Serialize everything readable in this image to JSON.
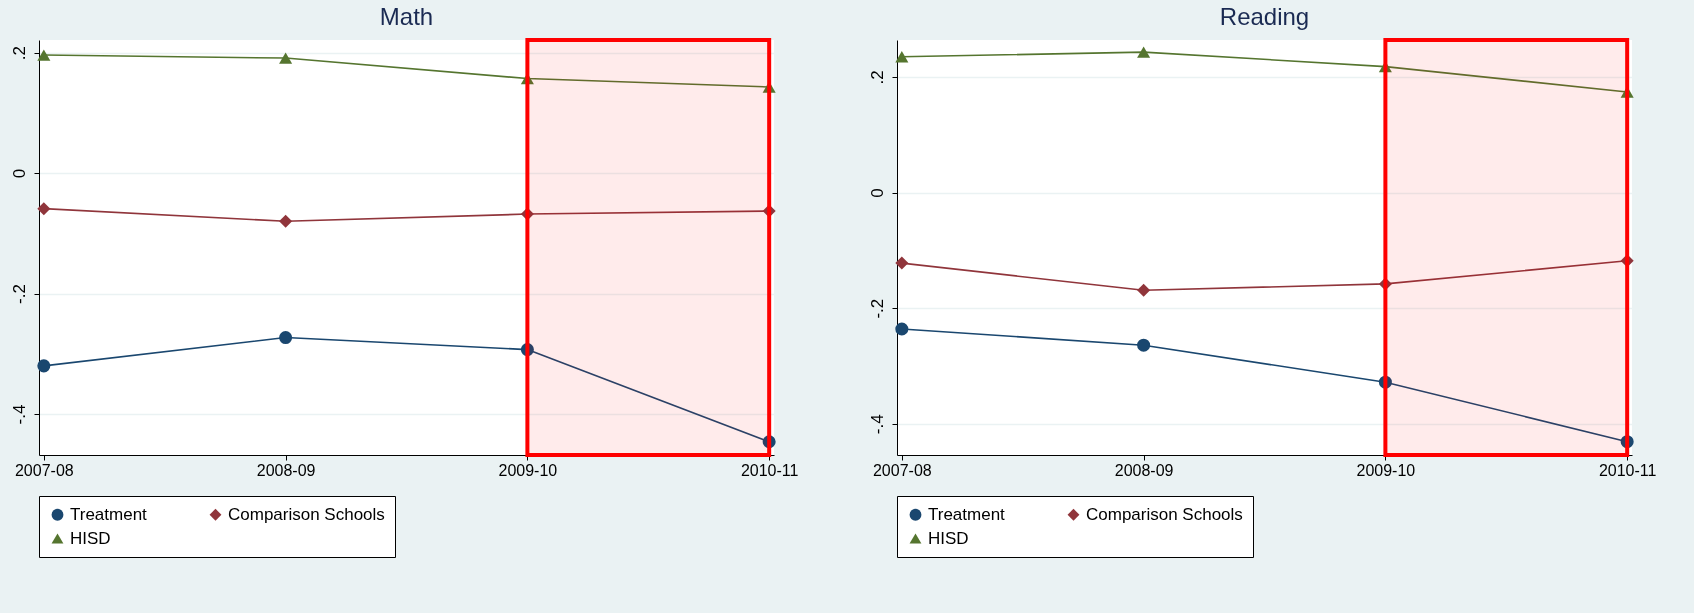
{
  "chart_data": [
    {
      "type": "line",
      "title": "Math",
      "categories": [
        "2007-08",
        "2008-09",
        "2009-10",
        "2010-11"
      ],
      "series": [
        {
          "name": "Treatment",
          "color": "#1a476f",
          "marker": "circle",
          "values": [
            -0.32,
            -0.273,
            -0.293,
            -0.446
          ]
        },
        {
          "name": "Comparison Schools",
          "color": "#90353b",
          "marker": "diamond",
          "values": [
            -0.059,
            -0.08,
            -0.068,
            -0.063
          ]
        },
        {
          "name": "HISD",
          "color": "#55752f",
          "marker": "triangle",
          "values": [
            0.196,
            0.191,
            0.157,
            0.143
          ]
        }
      ],
      "ylim": [
        -0.468,
        0.221
      ],
      "yticks": [
        {
          "value": -0.4,
          "label": "-.4"
        },
        {
          "value": -0.2,
          "label": "-.2"
        },
        0,
        {
          "value": 0.2,
          "label": ".2"
        }
      ],
      "grid": "y",
      "legend": "bottom",
      "line_style": "solid",
      "bands": [
        {
          "axis": "x",
          "from": "2009-10",
          "to": "2010-11",
          "color": "#ff0000"
        }
      ]
    },
    {
      "type": "line",
      "title": "Reading",
      "categories": [
        "2007-08",
        "2008-09",
        "2009-10",
        "2010-11"
      ],
      "series": [
        {
          "name": "Treatment",
          "color": "#1a476f",
          "marker": "circle",
          "values": [
            -0.236,
            -0.264,
            -0.328,
            -0.431
          ]
        },
        {
          "name": "Comparison Schools",
          "color": "#90353b",
          "marker": "diamond",
          "values": [
            -0.122,
            -0.169,
            -0.158,
            -0.118
          ]
        },
        {
          "name": "HISD",
          "color": "#55752f",
          "marker": "triangle",
          "values": [
            0.235,
            0.243,
            0.218,
            0.174
          ]
        }
      ],
      "ylim": [
        -0.454,
        0.264
      ],
      "yticks": [
        {
          "value": -0.4,
          "label": "-.4"
        },
        {
          "value": -0.2,
          "label": "-.2"
        },
        0,
        {
          "value": 0.2,
          "label": ".2"
        }
      ],
      "grid": "y",
      "legend": "bottom",
      "line_style": "solid",
      "bands": [
        {
          "axis": "x",
          "from": "2009-10",
          "to": "2010-11",
          "color": "#ff0000"
        }
      ]
    }
  ]
}
